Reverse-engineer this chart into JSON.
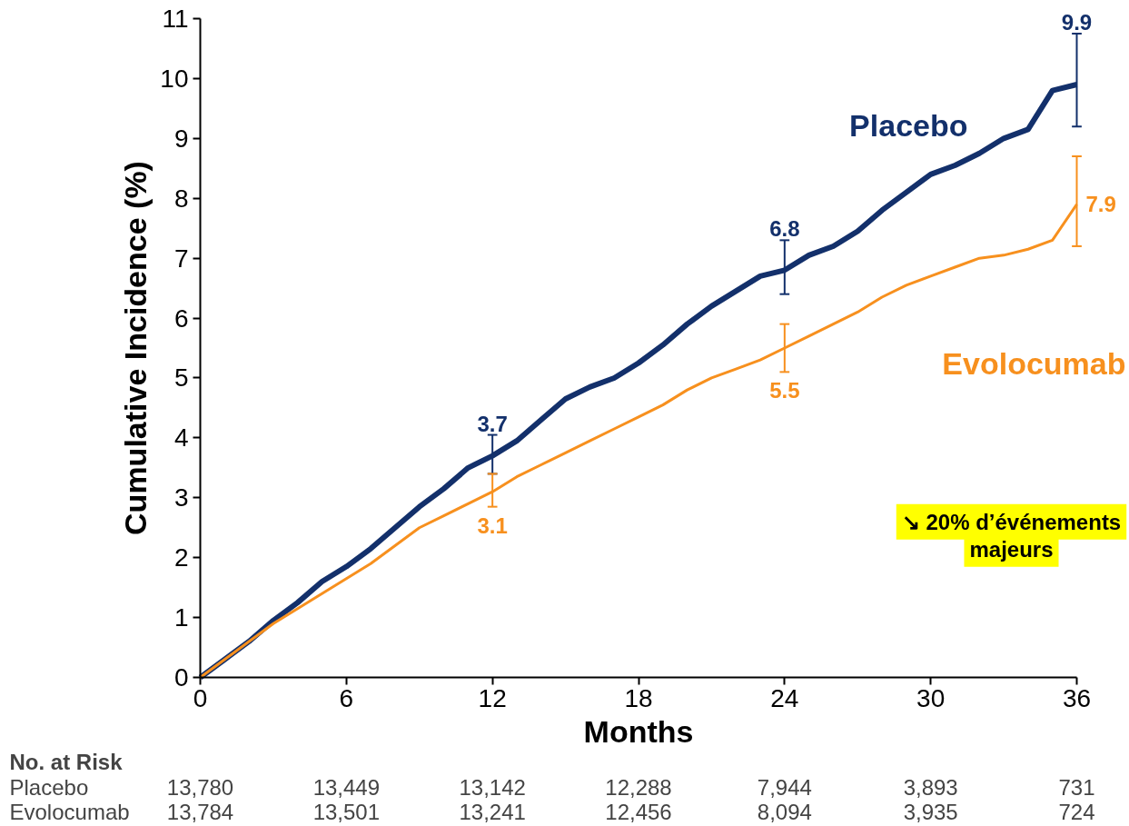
{
  "chart_data": {
    "type": "line",
    "xlabel": "Months",
    "ylabel": "Cumulative Incidence (%)",
    "x": [
      0,
      1,
      2,
      3,
      4,
      5,
      6,
      7,
      8,
      9,
      10,
      11,
      12,
      13,
      14,
      15,
      16,
      17,
      18,
      19,
      20,
      21,
      22,
      23,
      24,
      25,
      26,
      27,
      28,
      29,
      30,
      31,
      32,
      33,
      34,
      35,
      36
    ],
    "series": [
      {
        "name": "Placebo",
        "color": "#13306b",
        "values": [
          0,
          0.3,
          0.6,
          0.95,
          1.25,
          1.6,
          1.85,
          2.15,
          2.5,
          2.85,
          3.15,
          3.5,
          3.7,
          3.95,
          4.3,
          4.65,
          4.85,
          5.0,
          5.25,
          5.55,
          5.9,
          6.2,
          6.45,
          6.7,
          6.8,
          7.05,
          7.2,
          7.45,
          7.8,
          8.1,
          8.4,
          8.55,
          8.75,
          9.0,
          9.15,
          9.8,
          9.9
        ],
        "errors": [
          null,
          null,
          null,
          null,
          null,
          null,
          null,
          null,
          null,
          null,
          null,
          null,
          [
            3.4,
            4.05
          ],
          null,
          null,
          null,
          null,
          null,
          null,
          null,
          null,
          null,
          null,
          null,
          [
            6.4,
            7.3
          ],
          null,
          null,
          null,
          null,
          null,
          null,
          null,
          null,
          null,
          null,
          null,
          [
            9.2,
            10.75
          ]
        ],
        "value_labels": [
          null,
          null,
          null,
          null,
          null,
          null,
          null,
          null,
          null,
          null,
          null,
          null,
          "3.7",
          null,
          null,
          null,
          null,
          null,
          null,
          null,
          null,
          null,
          null,
          null,
          "6.8",
          null,
          null,
          null,
          null,
          null,
          null,
          null,
          null,
          null,
          null,
          null,
          "9.9"
        ]
      },
      {
        "name": "Evolocumab",
        "color": "#f7901e",
        "values": [
          0,
          0.3,
          0.6,
          0.9,
          1.15,
          1.4,
          1.65,
          1.9,
          2.2,
          2.5,
          2.7,
          2.9,
          3.1,
          3.35,
          3.55,
          3.75,
          3.95,
          4.15,
          4.35,
          4.55,
          4.8,
          5.0,
          5.15,
          5.3,
          5.5,
          5.7,
          5.9,
          6.1,
          6.35,
          6.55,
          6.7,
          6.85,
          7.0,
          7.05,
          7.15,
          7.3,
          7.9
        ],
        "errors": [
          null,
          null,
          null,
          null,
          null,
          null,
          null,
          null,
          null,
          null,
          null,
          null,
          [
            2.85,
            3.4
          ],
          null,
          null,
          null,
          null,
          null,
          null,
          null,
          null,
          null,
          null,
          null,
          [
            5.1,
            5.9
          ],
          null,
          null,
          null,
          null,
          null,
          null,
          null,
          null,
          null,
          null,
          null,
          [
            7.2,
            8.7
          ]
        ],
        "value_labels": [
          null,
          null,
          null,
          null,
          null,
          null,
          null,
          null,
          null,
          null,
          null,
          null,
          "3.1",
          null,
          null,
          null,
          null,
          null,
          null,
          null,
          null,
          null,
          null,
          null,
          "5.5",
          null,
          null,
          null,
          null,
          null,
          null,
          null,
          null,
          null,
          null,
          null,
          "7.9"
        ]
      }
    ],
    "xlim": [
      0,
      36
    ],
    "ylim": [
      0,
      11
    ],
    "xticks": [
      0,
      6,
      12,
      18,
      24,
      30,
      36
    ],
    "yticks": [
      0,
      1,
      2,
      3,
      4,
      5,
      6,
      7,
      8,
      9,
      10,
      11
    ],
    "grid": false,
    "legend": false,
    "marker": "none",
    "line_style": "solid",
    "annotations": [
      "No. at Risk",
      "Placebo",
      "13,780",
      "13,449",
      "13,142",
      "12,288",
      "7,944",
      "3,893",
      "731",
      "Evolocumab",
      "13,784",
      "13,501",
      "13,241",
      "12,456",
      "8,094",
      "3,935",
      "724",
      "↘ 20% d’événements majeurs"
    ]
  }
}
